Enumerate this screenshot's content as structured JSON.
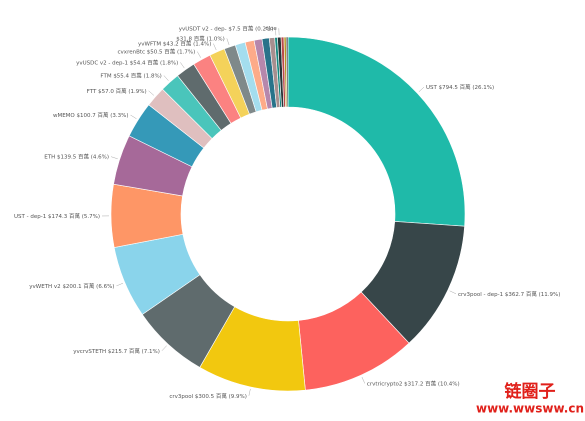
{
  "chart_data": {
    "type": "donut",
    "categories": [
      "UST",
      "crv3pool - dep-1",
      "crvtricrypto2",
      "crv3pool",
      "yvcrvSTETH",
      "yvWETH v2",
      "UST - dep-1",
      "ETH",
      "wMEMO",
      "FTT",
      "FTM",
      "yvUSDC v2 - dep-1",
      "cvxrenBtc",
      "yvWFTM",
      null,
      null,
      null,
      null,
      null,
      null,
      "yvUSDT v2 - dep-",
      "cJoe",
      null,
      null,
      null
    ],
    "values": [
      794.5,
      362.7,
      317.2,
      300.5,
      215.7,
      200.1,
      174.3,
      139.5,
      100.7,
      57.0,
      55.4,
      54.4,
      50.5,
      43.2,
      31.8,
      28,
      25,
      22,
      20,
      15,
      7.5,
      10,
      8,
      6,
      5
    ],
    "value_labels": [
      "$794.5 百萬 (26.1%)",
      "$362.7 百萬 (11.9%)",
      "$317.2 百萬 (10.4%)",
      "$300.5 百萬 (9.9%)",
      "$215.7 百萬 (7.1%)",
      "$200.1 百萬 (6.6%)",
      "$174.3 百萬 (5.7%)",
      "$139.5 百萬 (4.6%)",
      "$100.7 百萬 (3.3%)",
      "$57.0 百萬 (1.9%)",
      "$55.4 百萬 (1.8%)",
      "$54.4 百萬 (1.8%)",
      "$50.5 百萬 (1.7%)",
      "$43.2 百萬 (1.4%)",
      "$31.8 百萬 (1.0%)",
      null,
      null,
      null,
      null,
      null,
      "$7.5 百萬 (0.2%)",
      null,
      null,
      null,
      null
    ],
    "colors": [
      "#1fbaa9",
      "#374649",
      "#fd625e",
      "#f2c80f",
      "#5f6b6d",
      "#8ad4eb",
      "#fe9666",
      "#a66999",
      "#3599b8",
      "#dfbfbf",
      "#4ac5bb",
      "#5f6b6d",
      "#fb8281",
      "#f4d25a",
      "#7f898a",
      "#a4ddee",
      "#fdab89",
      "#b687ac",
      "#28738a",
      "#a78f8f",
      "#168980",
      "#293537",
      "#bb4a4a",
      "#b59525",
      "#475052"
    ]
  },
  "watermark": {
    "title": "链圈子",
    "url": "www.wwsww.cn"
  }
}
